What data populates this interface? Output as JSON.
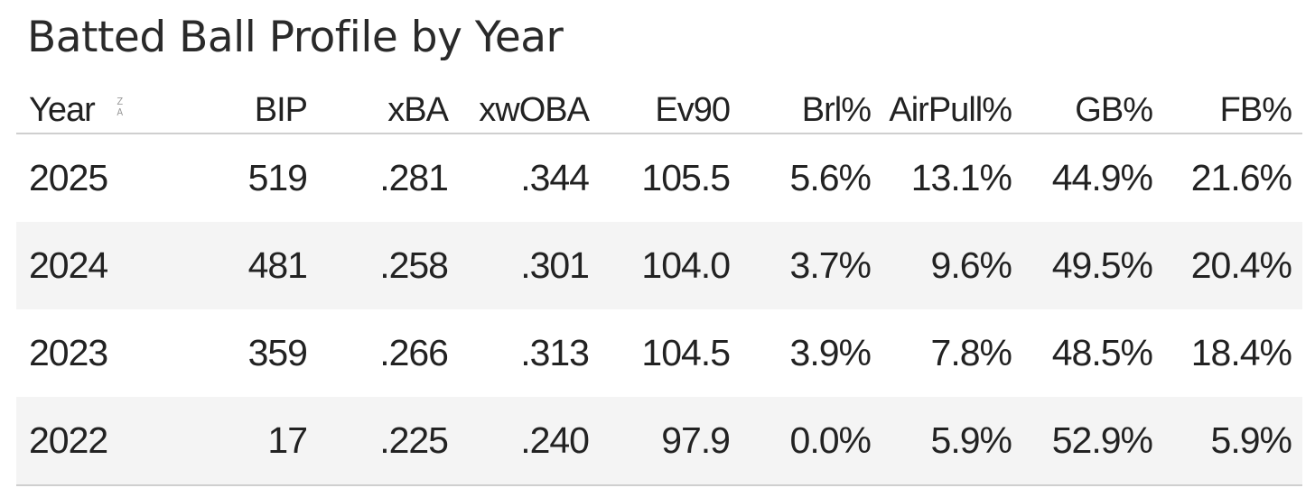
{
  "title": "Batted Ball Profile by Year",
  "sort_icon": {
    "top": "Z",
    "bottom": "A"
  },
  "columns": [
    "Year",
    "BIP",
    "xBA",
    "xwOBA",
    "Ev90",
    "Brl%",
    "AirPull%",
    "GB%",
    "FB%"
  ],
  "rows": [
    [
      "2025",
      "519",
      ".281",
      ".344",
      "105.5",
      "5.6%",
      "13.1%",
      "44.9%",
      "21.6%"
    ],
    [
      "2024",
      "481",
      ".258",
      ".301",
      "104.0",
      "3.7%",
      "9.6%",
      "49.5%",
      "20.4%"
    ],
    [
      "2023",
      "359",
      ".266",
      ".313",
      "104.5",
      "3.9%",
      "7.8%",
      "48.5%",
      "18.4%"
    ],
    [
      "2022",
      "17",
      ".225",
      ".240",
      "97.9",
      "0.0%",
      "5.9%",
      "52.9%",
      "5.9%"
    ]
  ]
}
